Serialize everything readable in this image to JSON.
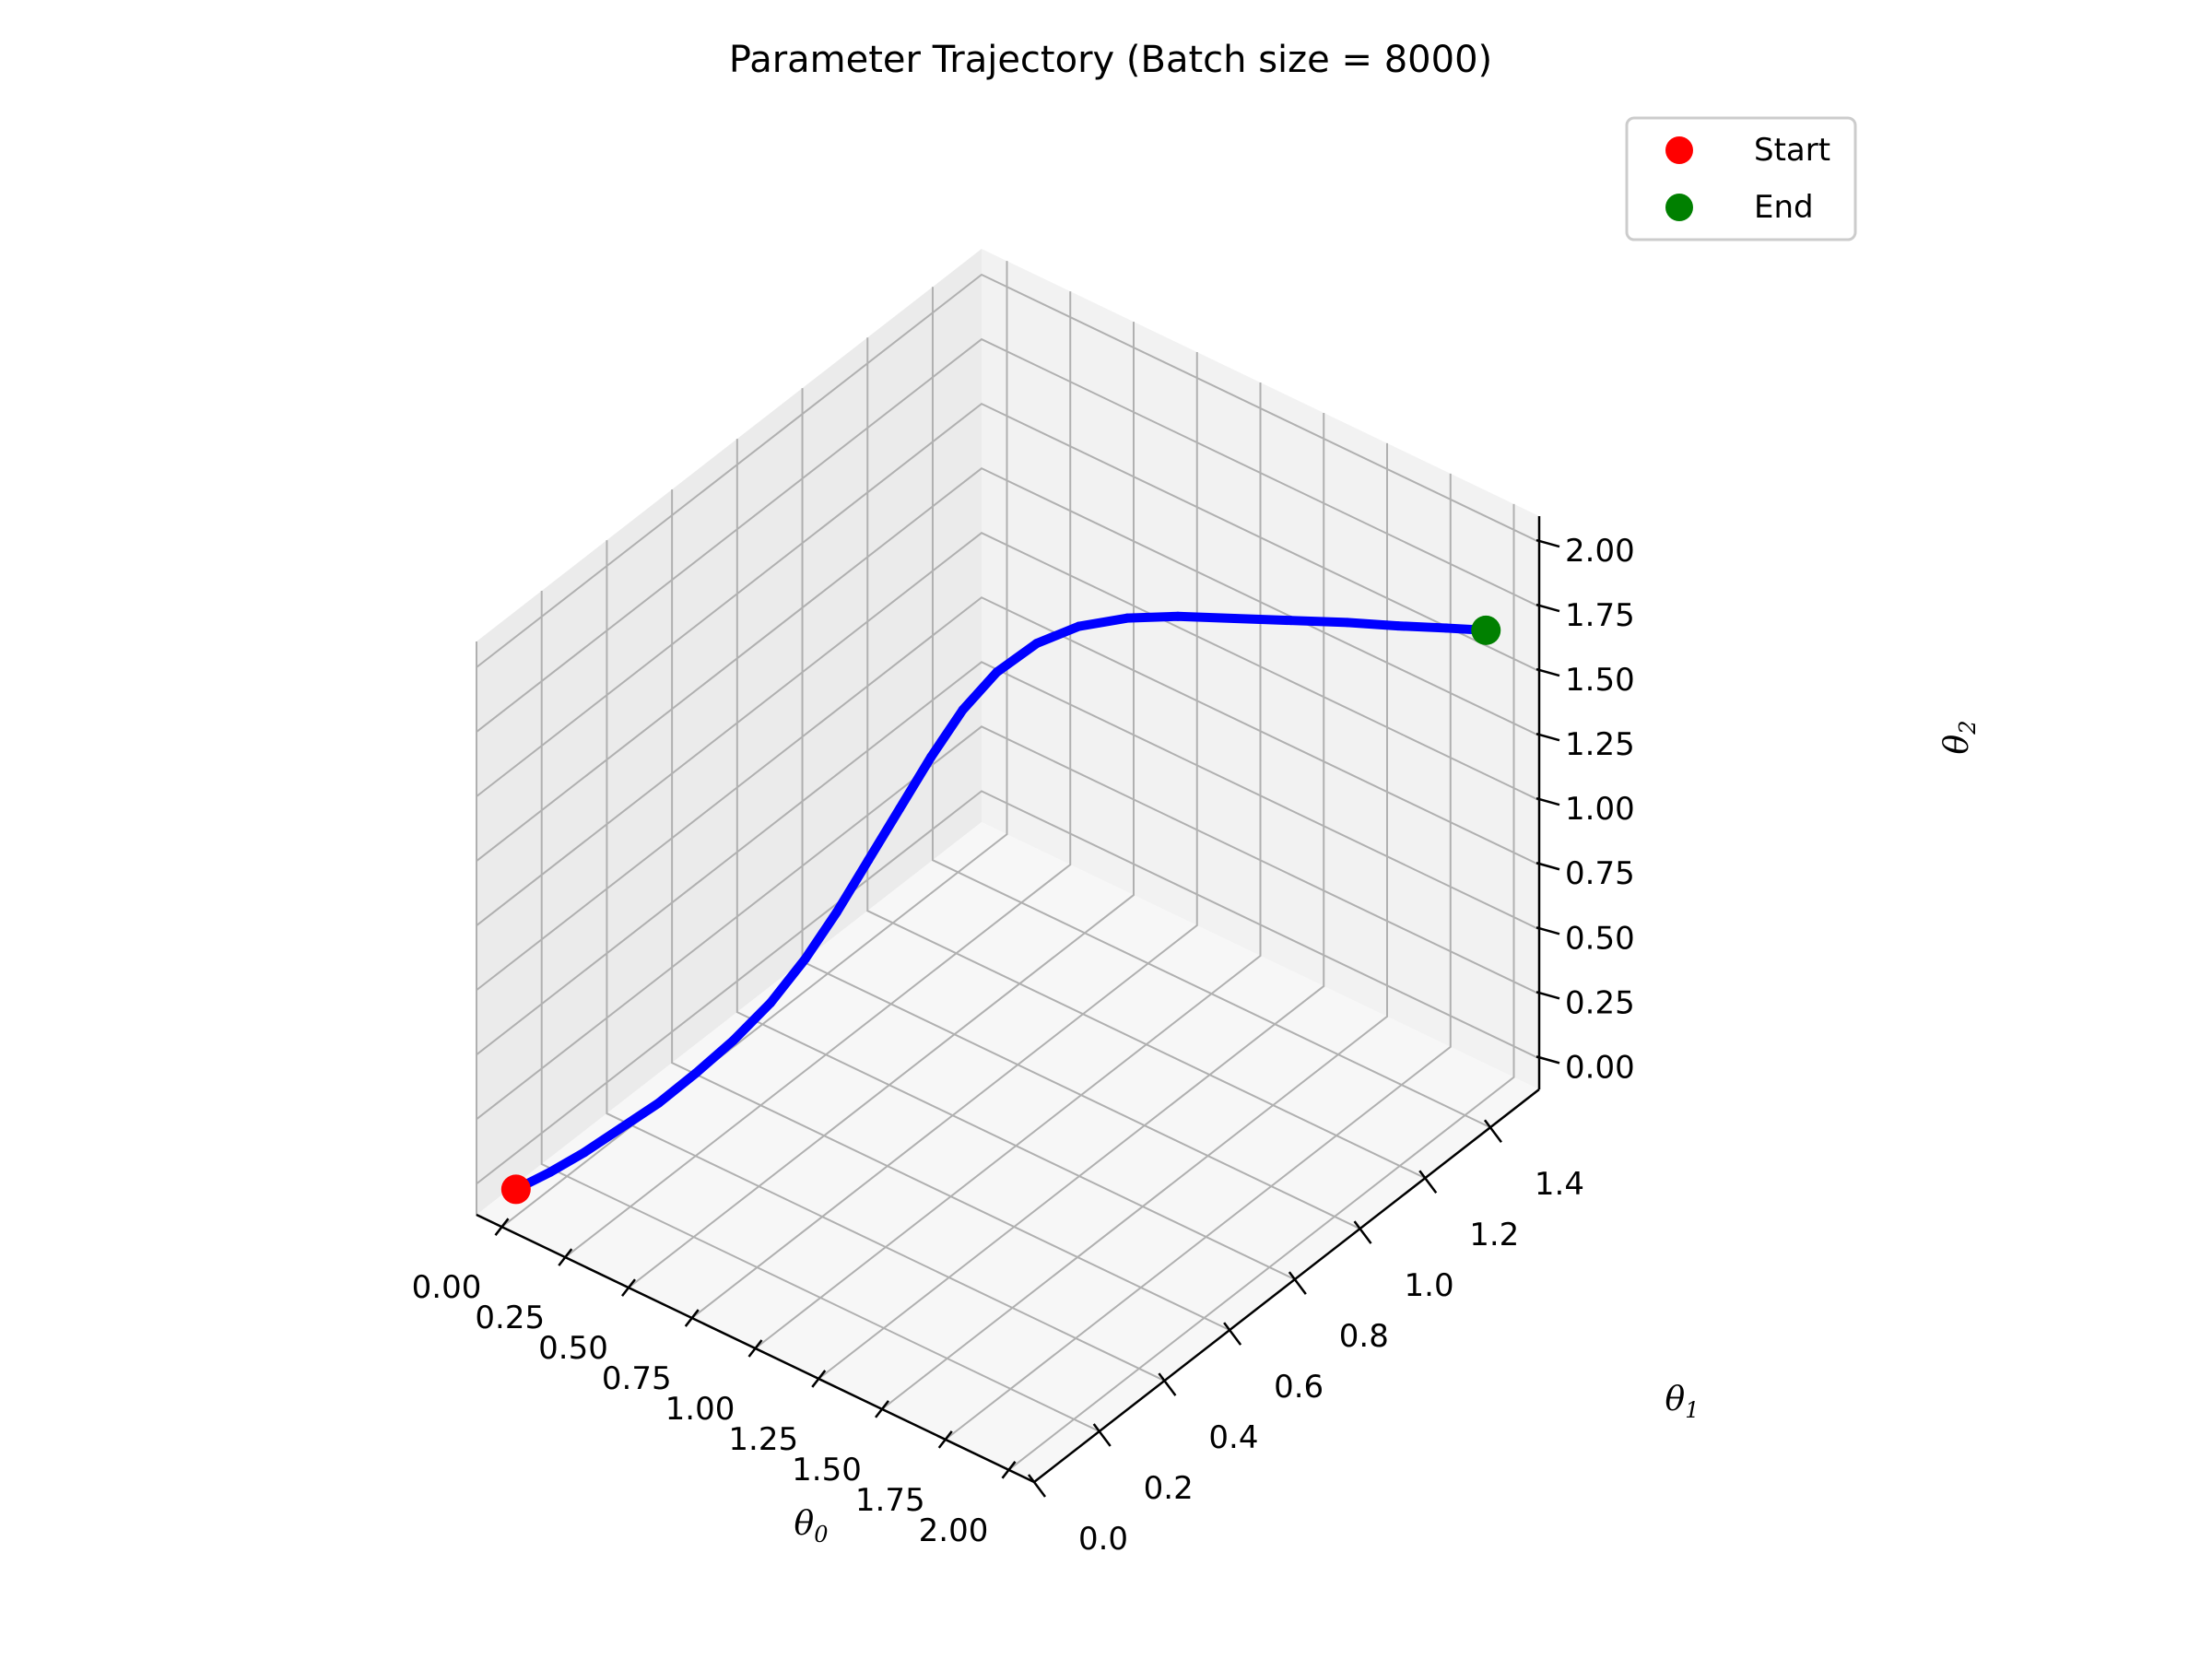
{
  "chart_data": {
    "type": "line3d",
    "title": "Parameter Trajectory (Batch size = 8000)",
    "xlabel": "θ0",
    "ylabel": "θ1",
    "zlabel": "θ2",
    "xlim": [
      -0.1,
      2.1
    ],
    "ylim": [
      0.0,
      1.55
    ],
    "zlim": [
      -0.12,
      2.1
    ],
    "x_ticks": [
      "0.00",
      "0.25",
      "0.50",
      "0.75",
      "1.00",
      "1.25",
      "1.50",
      "1.75",
      "2.00"
    ],
    "y_ticks": [
      "0.0",
      "0.2",
      "0.4",
      "0.6",
      "0.8",
      "1.0",
      "1.2",
      "1.4"
    ],
    "z_ticks": [
      "0.00",
      "0.25",
      "0.50",
      "0.75",
      "1.00",
      "1.25",
      "1.50",
      "1.75",
      "2.00"
    ],
    "grid": true,
    "legend_position": "top-right",
    "series": [
      {
        "type": "line",
        "color": "#0000ff",
        "points": [
          [
            0.03,
            0.02,
            0.02
          ],
          [
            0.1,
            0.07,
            0.07
          ],
          [
            0.17,
            0.12,
            0.13
          ],
          [
            0.24,
            0.18,
            0.2
          ],
          [
            0.31,
            0.24,
            0.27
          ],
          [
            0.38,
            0.3,
            0.36
          ],
          [
            0.45,
            0.36,
            0.46
          ],
          [
            0.52,
            0.42,
            0.58
          ],
          [
            0.58,
            0.48,
            0.72
          ],
          [
            0.64,
            0.53,
            0.88
          ],
          [
            0.7,
            0.58,
            1.06
          ],
          [
            0.76,
            0.63,
            1.24
          ],
          [
            0.82,
            0.68,
            1.42
          ],
          [
            0.88,
            0.73,
            1.58
          ],
          [
            0.95,
            0.78,
            1.71
          ],
          [
            1.03,
            0.84,
            1.8
          ],
          [
            1.12,
            0.9,
            1.85
          ],
          [
            1.22,
            0.97,
            1.86
          ],
          [
            1.33,
            1.04,
            1.85
          ],
          [
            1.45,
            1.12,
            1.82
          ],
          [
            1.57,
            1.2,
            1.79
          ],
          [
            1.69,
            1.28,
            1.76
          ],
          [
            1.8,
            1.35,
            1.73
          ],
          [
            1.9,
            1.42,
            1.7
          ],
          [
            1.98,
            1.48,
            1.67
          ]
        ]
      },
      {
        "type": "scatter",
        "name": "Start",
        "color": "#ff0000",
        "point": [
          0.03,
          0.02,
          0.02
        ]
      },
      {
        "type": "scatter",
        "name": "End",
        "color": "#008000",
        "point": [
          1.98,
          1.48,
          1.67
        ]
      }
    ]
  },
  "colors": {
    "pane_left": "#ebebeb",
    "pane_back": "#f2f2f2",
    "pane_floor": "#f7f7f7",
    "grid": "#b0b0b0",
    "axis": "#000000",
    "trajectory": "#0000ff",
    "start": "#ff0000",
    "end": "#008000"
  }
}
